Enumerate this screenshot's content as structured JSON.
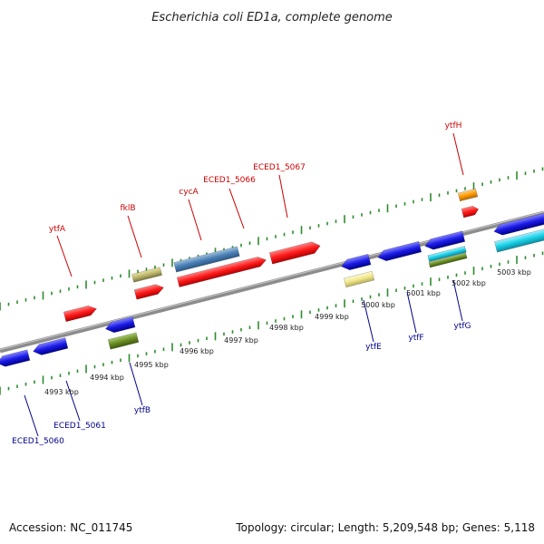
{
  "title": "Escherichia coli ED1a, complete genome",
  "footer": {
    "accession": "Accession: NC_011745",
    "summary": "Topology: circular; Length: 5,209,548 bp; Genes: 5,118"
  },
  "colors": {
    "backbone": "#8c8c8c",
    "tick": "#2e8b2e",
    "label_top": "#cc0000",
    "label_bottom": "#00008b",
    "red": "#ff1a1a",
    "blue": "#1a1ae6",
    "steel": "#4a7fb5",
    "khaki": "#bdb76b",
    "olive": "#6b8e23",
    "cyan": "#1ad1e6",
    "orange": "#ff9900",
    "pale_yellow": "#f0e68c"
  },
  "scale_labels": [
    "4993 kbp",
    "4994 kbp",
    "4995 kbp",
    "4996 kbp",
    "4997 kbp",
    "4998 kbp",
    "4999 kbp",
    "5000 kbp",
    "5001 kbp",
    "5002 kbp",
    "5003 kbp"
  ],
  "genes_top": [
    "ytfA",
    "fklB",
    "cycA",
    "ECED1_5066",
    "ECED1_5067",
    "ytfH"
  ],
  "genes_bottom": [
    "ECED1_5060",
    "ECED1_5061",
    "ytfB",
    "ytfE",
    "ytfF",
    "ytfG"
  ]
}
